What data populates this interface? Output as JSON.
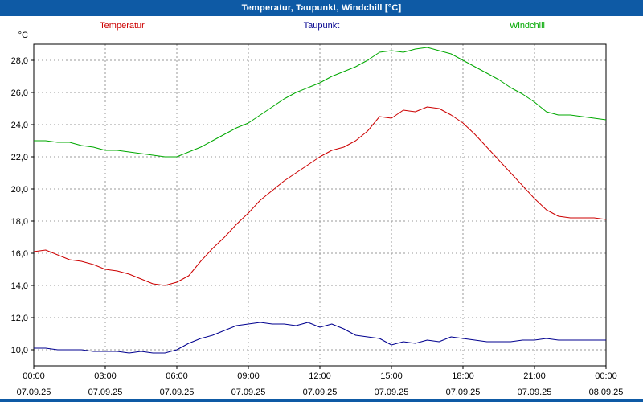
{
  "title_bar": {
    "title": "Temperatur, Taupunkt, Windchill [°C]"
  },
  "colors": {
    "title_bar_bg": "#0e5aa5",
    "title_bar_fg": "#ffffff",
    "grid": "#9a9a9a",
    "border": "#000000",
    "plot_bg": "#ffffff"
  },
  "chart_data": {
    "type": "line",
    "title": "Temperatur, Taupunkt, Windchill [°C]",
    "y_unit": "°C",
    "xlabel": "",
    "ylabel": "°C",
    "xlim_hours": [
      0,
      24
    ],
    "ylim": [
      9,
      29
    ],
    "grid": "dashed",
    "legend_position": "top",
    "x_tick_hours": [
      0,
      3,
      6,
      9,
      12,
      15,
      18,
      21,
      24
    ],
    "x_tick_labels": [
      "00:00",
      "03:00",
      "06:00",
      "09:00",
      "12:00",
      "15:00",
      "18:00",
      "21:00",
      "00:00"
    ],
    "x_date_labels": [
      "07.09.25",
      "07.09.25",
      "07.09.25",
      "07.09.25",
      "07.09.25",
      "07.09.25",
      "07.09.25",
      "07.09.25",
      "08.09.25"
    ],
    "y_ticks": [
      10,
      12,
      14,
      16,
      18,
      20,
      22,
      24,
      26,
      28
    ],
    "y_tick_labels": [
      "10,0",
      "12,0",
      "14,0",
      "16,0",
      "18,0",
      "20,0",
      "22,0",
      "24,0",
      "26,0",
      "28,0"
    ],
    "step_hours": 0.5,
    "series": [
      {
        "name": "Temperatur",
        "color": "#cc0000",
        "values": [
          16.1,
          16.2,
          15.9,
          15.6,
          15.5,
          15.3,
          15.0,
          14.9,
          14.7,
          14.4,
          14.1,
          14.0,
          14.2,
          14.6,
          15.5,
          16.3,
          17.0,
          17.8,
          18.5,
          19.3,
          19.9,
          20.5,
          21.0,
          21.5,
          22.0,
          22.4,
          22.6,
          23.0,
          23.6,
          24.5,
          24.4,
          24.9,
          24.8,
          25.1,
          25.0,
          24.6,
          24.1,
          23.4,
          22.6,
          21.8,
          21.0,
          20.2,
          19.4,
          18.7,
          18.3,
          18.2,
          18.2,
          18.2,
          18.1
        ]
      },
      {
        "name": "Taupunkt",
        "color": "#00008f",
        "values": [
          10.1,
          10.1,
          10.0,
          10.0,
          10.0,
          9.9,
          9.9,
          9.9,
          9.8,
          9.9,
          9.8,
          9.8,
          10.0,
          10.4,
          10.7,
          10.9,
          11.2,
          11.5,
          11.6,
          11.7,
          11.6,
          11.6,
          11.5,
          11.7,
          11.4,
          11.6,
          11.3,
          10.9,
          10.8,
          10.7,
          10.3,
          10.5,
          10.4,
          10.6,
          10.5,
          10.8,
          10.7,
          10.6,
          10.5,
          10.5,
          10.5,
          10.6,
          10.6,
          10.7,
          10.6,
          10.6,
          10.6,
          10.6,
          10.6
        ]
      },
      {
        "name": "Windchill",
        "color": "#00a800",
        "values": [
          23.0,
          23.0,
          22.9,
          22.9,
          22.7,
          22.6,
          22.4,
          22.4,
          22.3,
          22.2,
          22.1,
          22.0,
          22.0,
          22.3,
          22.6,
          23.0,
          23.4,
          23.8,
          24.1,
          24.6,
          25.1,
          25.6,
          26.0,
          26.3,
          26.6,
          27.0,
          27.3,
          27.6,
          28.0,
          28.5,
          28.6,
          28.5,
          28.7,
          28.8,
          28.6,
          28.4,
          28.0,
          27.6,
          27.2,
          26.8,
          26.3,
          25.9,
          25.4,
          24.8,
          24.6,
          24.6,
          24.5,
          24.4,
          24.3
        ]
      }
    ]
  }
}
